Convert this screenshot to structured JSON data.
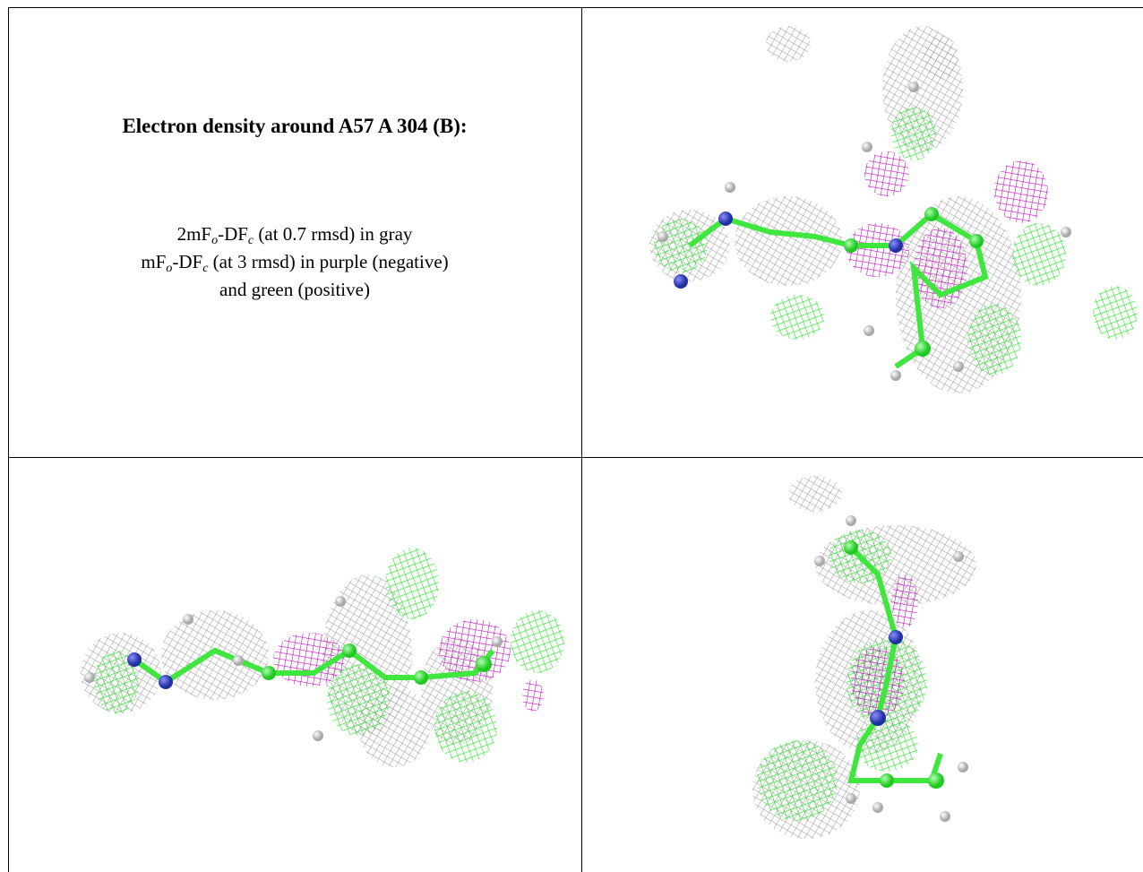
{
  "caption": {
    "title": "Electron density around A57 A 304 (B):",
    "lines": [
      [
        "2mF",
        "o",
        "-DF",
        "c",
        " (at 0.7 rmsd) in gray"
      ],
      [
        "mF",
        "o",
        "-DF",
        "c",
        " (at 3 rmsd) in purple (negative)"
      ],
      [
        "and green (positive)"
      ]
    ]
  }
}
